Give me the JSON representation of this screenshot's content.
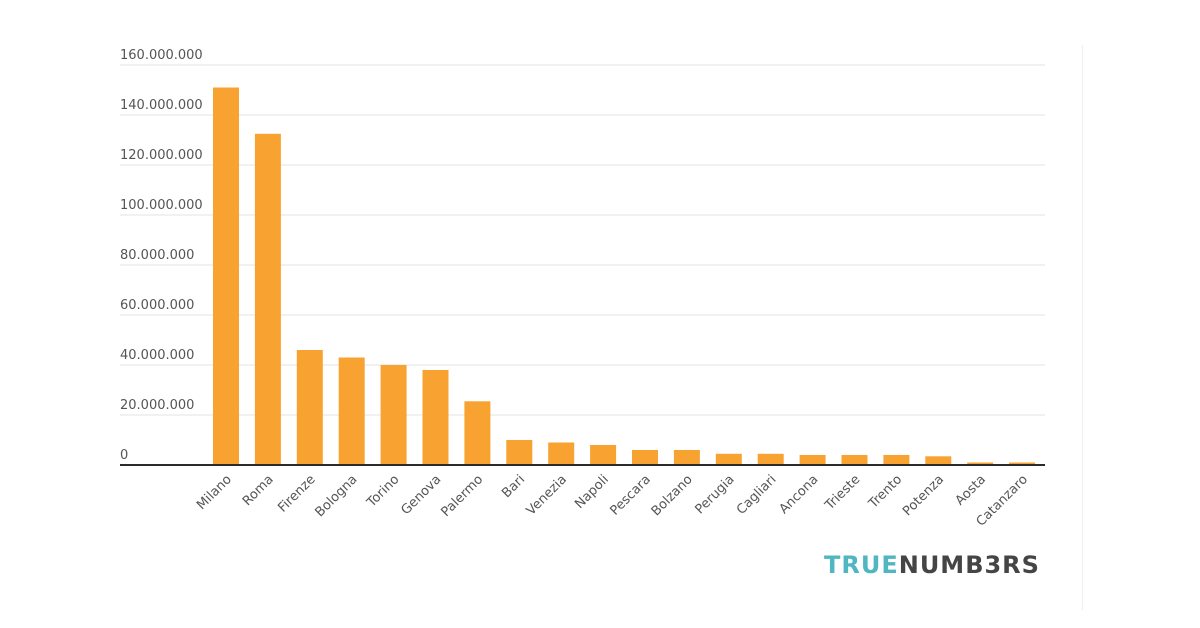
{
  "chart_data": {
    "type": "bar",
    "title": "",
    "xlabel": "",
    "ylabel": "",
    "categories": [
      "Milano",
      "Roma",
      "Firenze",
      "Bologna",
      "Torino",
      "Genova",
      "Palermo",
      "Bari",
      "Venezia",
      "Napoli",
      "Pescara",
      "Bolzano",
      "Perugia",
      "Cagliari",
      "Ancona",
      "Trieste",
      "Trento",
      "Potenza",
      "Aosta",
      "Catanzaro"
    ],
    "values": [
      151000000,
      132500000,
      46000000,
      43000000,
      40000000,
      38000000,
      25500000,
      10000000,
      9000000,
      8000000,
      6000000,
      6000000,
      4500000,
      4500000,
      4000000,
      4000000,
      4000000,
      3500000,
      1000000,
      1000000
    ],
    "ylim": [
      0,
      160000000
    ],
    "y_ticks": [
      0,
      20000000,
      40000000,
      60000000,
      80000000,
      100000000,
      120000000,
      140000000,
      160000000
    ],
    "y_tick_labels": [
      "0",
      "20.000.000",
      "40.000.000",
      "60.000.000",
      "80.000.000",
      "100.000.000",
      "120.000.000",
      "140.000.000",
      "160.000.000"
    ],
    "grid": true,
    "legend": "none",
    "colors": {
      "bar": "#f8a232",
      "grid": "#e3e3e3",
      "axis": "#2b2b2b",
      "tick_text": "#555555"
    }
  },
  "logo": {
    "part_a": "TRUE",
    "part_b": "NUMB3RS"
  }
}
